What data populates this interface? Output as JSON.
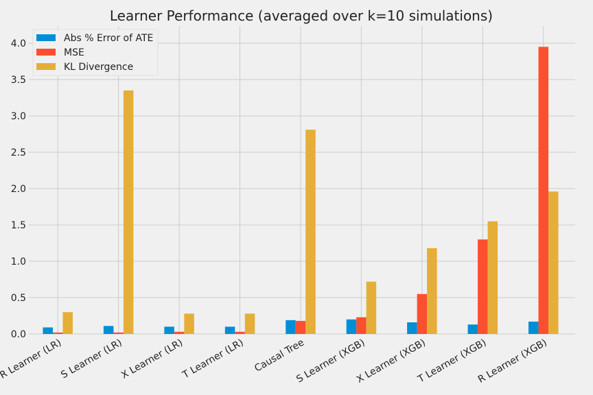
{
  "chart_data": {
    "type": "bar",
    "title": "Learner Performance (averaged over k=10 simulations)",
    "xlabel": "",
    "ylabel": "",
    "categories": [
      "R Learner (LR)",
      "S Learner (LR)",
      "X Learner (LR)",
      "T Learner (LR)",
      "Causal Tree",
      "S Learner (XGB)",
      "X Learner (XGB)",
      "T Learner (XGB)",
      "R Learner (XGB)"
    ],
    "series": [
      {
        "name": "Abs % Error of ATE",
        "color": "#008fd5",
        "values": [
          0.09,
          0.11,
          0.1,
          0.1,
          0.19,
          0.2,
          0.16,
          0.13,
          0.17
        ]
      },
      {
        "name": "MSE",
        "color": "#fc4f30",
        "values": [
          0.02,
          0.02,
          0.03,
          0.03,
          0.18,
          0.23,
          0.55,
          1.3,
          3.95
        ]
      },
      {
        "name": "KL Divergence",
        "color": "#e5ae38",
        "values": [
          0.3,
          3.35,
          0.28,
          0.28,
          2.81,
          0.72,
          1.18,
          1.55,
          1.96
        ]
      }
    ],
    "yticks": [
      "0.0",
      "0.5",
      "1.0",
      "1.5",
      "2.0",
      "2.5",
      "3.0",
      "3.5",
      "4.0"
    ],
    "ylim": [
      0,
      4.15
    ],
    "grid": true,
    "legend": "top-left"
  }
}
